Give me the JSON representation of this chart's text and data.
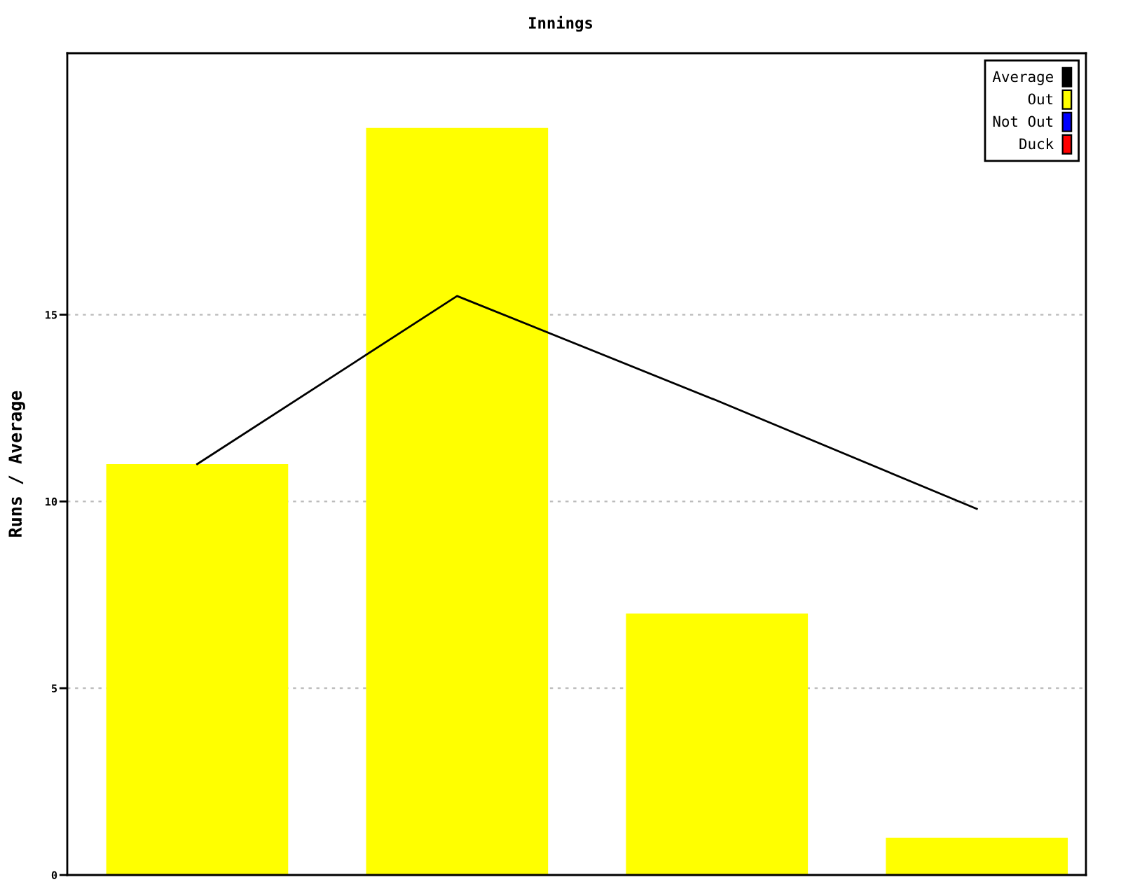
{
  "chart_data": {
    "type": "bar",
    "title": "Innings",
    "ylabel": "Runs / Average",
    "categories": [
      null,
      null,
      null,
      null
    ],
    "series": [
      {
        "name": "Average",
        "type": "line",
        "color": "#000000",
        "values": [
          11,
          15.5,
          12.7,
          9.8
        ]
      },
      {
        "name": "Out",
        "color": "#ffff00",
        "values": [
          11,
          20,
          7,
          1
        ]
      },
      {
        "name": "Not Out",
        "color": "#0000ff",
        "values": [
          null,
          null,
          null,
          null
        ]
      },
      {
        "name": "Duck",
        "color": "#ff0000",
        "values": [
          null,
          null,
          null,
          null
        ]
      }
    ],
    "stacked": true,
    "ylim": [
      0,
      22
    ],
    "yticks": [
      0,
      5,
      10,
      15
    ],
    "grid": "y",
    "legend": "top right",
    "tick_labels": "y",
    "line_style": "solid"
  }
}
